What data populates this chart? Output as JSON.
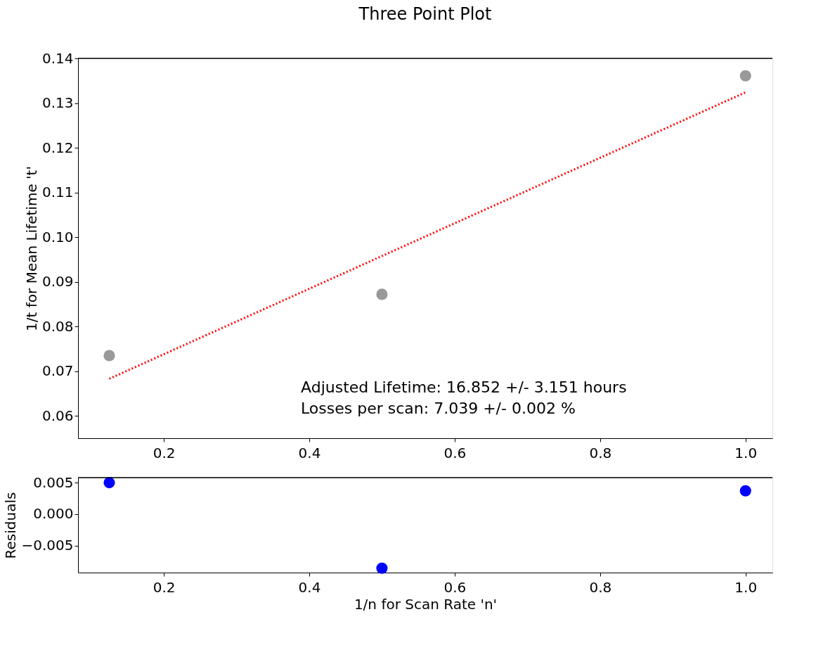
{
  "chart_data": [
    {
      "type": "scatter",
      "title": "Three Point Plot",
      "ylabel": "1/t for Mean Lifetime 't'",
      "x": [
        0.125,
        0.5,
        1.0
      ],
      "xlim": [
        0.082,
        1.037
      ],
      "ylim": [
        0.055,
        0.14
      ],
      "xticks": [
        {
          "value": 0.2,
          "label": "0.2"
        },
        {
          "value": 0.4,
          "label": "0.4"
        },
        {
          "value": 0.6,
          "label": "0.6"
        },
        {
          "value": 0.8,
          "label": "0.8"
        },
        {
          "value": 1.0,
          "label": "1.0"
        }
      ],
      "yticks": [
        {
          "value": 0.06,
          "label": "0.06"
        },
        {
          "value": 0.07,
          "label": "0.07"
        },
        {
          "value": 0.08,
          "label": "0.08"
        },
        {
          "value": 0.09,
          "label": "0.09"
        },
        {
          "value": 0.1,
          "label": "0.10"
        },
        {
          "value": 0.11,
          "label": "0.11"
        },
        {
          "value": 0.12,
          "label": "0.12"
        },
        {
          "value": 0.13,
          "label": "0.13"
        },
        {
          "value": 0.14,
          "label": "0.14"
        }
      ],
      "grid": false,
      "annotations": [
        "Adjusted Lifetime: 16.852 +/- 3.151 hours",
        "Losses per scan: 7.039 +/- 0.002 %"
      ],
      "series": [
        {
          "type": "scatter",
          "marker": "circle",
          "color": "#999999",
          "values": [
            0.0735,
            0.0872,
            0.1361
          ]
        },
        {
          "type": "line",
          "color": "#ff0000",
          "line_style": "dotted",
          "x": [
            0.125,
            1.0
          ],
          "values": [
            0.0683,
            0.1324
          ]
        }
      ]
    },
    {
      "type": "scatter",
      "xlabel": "1/n for Scan Rate 'n'",
      "ylabel": "Residuals",
      "x": [
        0.125,
        0.5,
        1.0
      ],
      "xlim": [
        0.082,
        1.037
      ],
      "ylim": [
        -0.0093,
        0.0058
      ],
      "xticks": [
        {
          "value": 0.2,
          "label": "0.2"
        },
        {
          "value": 0.4,
          "label": "0.4"
        },
        {
          "value": 0.6,
          "label": "0.6"
        },
        {
          "value": 0.8,
          "label": "0.8"
        },
        {
          "value": 1.0,
          "label": "1.0"
        }
      ],
      "yticks": [
        {
          "value": -0.005,
          "label": "−0.005"
        },
        {
          "value": 0.0,
          "label": "0.000"
        },
        {
          "value": 0.005,
          "label": "0.005"
        }
      ],
      "marker": "circle",
      "grid": false,
      "series": [
        {
          "type": "scatter",
          "color": "#0000ff",
          "values": [
            0.005,
            -0.0086,
            0.0037
          ]
        }
      ]
    }
  ]
}
